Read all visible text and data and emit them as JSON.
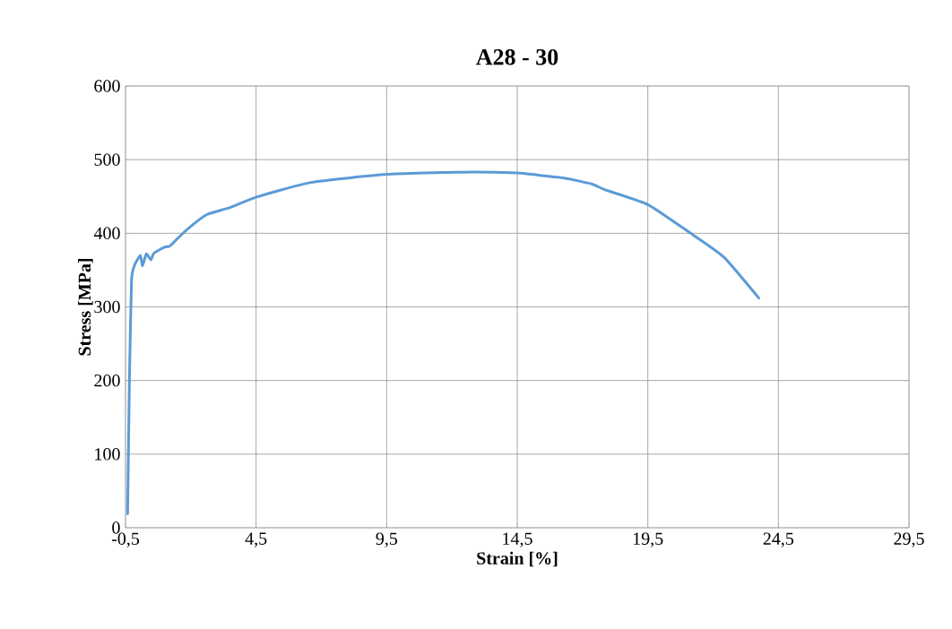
{
  "chart_data": {
    "type": "line",
    "title": "A28 - 30",
    "xlabel": "Strain [%]",
    "ylabel": "Stress  [MPa]",
    "x": [
      -0.42,
      -0.35,
      -0.27,
      -0.16,
      0.07,
      0.15,
      0.3,
      0.47,
      0.59,
      0.99,
      1.16,
      1.24,
      1.79,
      2.59,
      3.5,
      4.5,
      6.6,
      9.5,
      12.3,
      14.5,
      15.3,
      16.3,
      17.35,
      17.87,
      19.5,
      21.1,
      22.4,
      23.75
    ],
    "series": [
      {
        "color": "#5b9bd5",
        "values": [
          19,
          200,
          336,
          356,
          370,
          356,
          372,
          364,
          373,
          381,
          382,
          384,
          403,
          425,
          435,
          449,
          469,
          480,
          483,
          482,
          479,
          475,
          467,
          459,
          439,
          401,
          368,
          312
        ]
      }
    ],
    "xlim": [
      -0.5,
      29.5
    ],
    "xticks": [
      {
        "value": -0.5,
        "label": "-0,5"
      },
      {
        "value": 4.5,
        "label": "4,5"
      },
      {
        "value": 9.5,
        "label": "9,5"
      },
      {
        "value": 14.5,
        "label": "14,5"
      },
      {
        "value": 19.5,
        "label": "19,5"
      },
      {
        "value": 24.5,
        "label": "24,5"
      },
      {
        "value": 29.5,
        "label": "29,5"
      }
    ],
    "ylim": [
      0,
      600
    ],
    "yticks": [
      0,
      100,
      200,
      300,
      400,
      500,
      600
    ],
    "grid": true,
    "marker": "none",
    "line_style": "solid"
  }
}
